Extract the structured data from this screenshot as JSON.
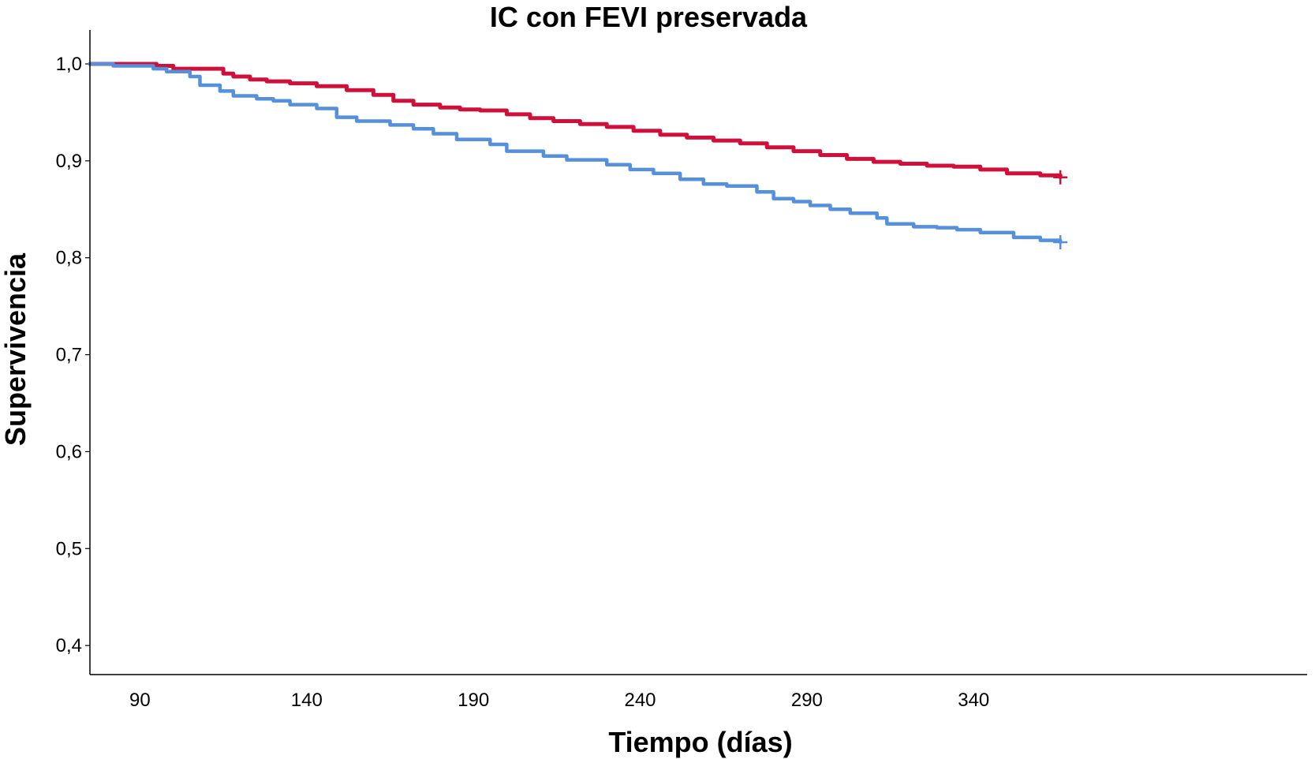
{
  "chart_data": {
    "type": "line",
    "title": "IC con FEVI preservada",
    "xlabel": "Tiempo (días)",
    "ylabel": "Supervivencia",
    "xlim": [
      75,
      440
    ],
    "ylim": [
      0.37,
      1.035
    ],
    "xticks": [
      90,
      140,
      190,
      240,
      290,
      340
    ],
    "xtick_labels": [
      "90",
      "140",
      "190",
      "240",
      "290",
      "340"
    ],
    "yticks": [
      0.4,
      0.5,
      0.6,
      0.7,
      0.8,
      0.9,
      1.0
    ],
    "ytick_labels": [
      "0,4",
      "0,5",
      "0,6",
      "0,7",
      "0,8",
      "0,9",
      "1,0"
    ],
    "grid": false,
    "series": [
      {
        "color": "#d0103a",
        "step": true,
        "censored_end": true,
        "x": [
          75,
          95,
          100,
          115,
          118,
          123,
          128,
          135,
          143,
          152,
          160,
          166,
          172,
          180,
          186,
          192,
          200,
          207,
          214,
          222,
          230,
          238,
          246,
          254,
          262,
          270,
          278,
          286,
          294,
          302,
          310,
          318,
          326,
          334,
          342,
          350,
          360,
          366
        ],
        "y": [
          1.0,
          0.998,
          0.995,
          0.99,
          0.987,
          0.984,
          0.982,
          0.98,
          0.977,
          0.973,
          0.968,
          0.962,
          0.958,
          0.955,
          0.953,
          0.952,
          0.948,
          0.944,
          0.941,
          0.938,
          0.935,
          0.931,
          0.927,
          0.924,
          0.921,
          0.918,
          0.914,
          0.91,
          0.906,
          0.902,
          0.899,
          0.897,
          0.895,
          0.894,
          0.891,
          0.887,
          0.885,
          0.883
        ]
      },
      {
        "color": "#5590dc",
        "step": true,
        "censored_end": true,
        "x": [
          75,
          82,
          94,
          98,
          105,
          108,
          114,
          118,
          125,
          130,
          135,
          143,
          149,
          155,
          165,
          172,
          178,
          185,
          195,
          200,
          211,
          218,
          230,
          237,
          244,
          252,
          259,
          266,
          275,
          280,
          286,
          291,
          297,
          303,
          311,
          314,
          322,
          329,
          335,
          342,
          352,
          360,
          366
        ],
        "y": [
          1.0,
          0.998,
          0.995,
          0.992,
          0.987,
          0.978,
          0.972,
          0.967,
          0.964,
          0.962,
          0.958,
          0.954,
          0.945,
          0.941,
          0.937,
          0.933,
          0.928,
          0.922,
          0.917,
          0.91,
          0.905,
          0.901,
          0.896,
          0.891,
          0.887,
          0.881,
          0.876,
          0.874,
          0.868,
          0.861,
          0.858,
          0.854,
          0.85,
          0.846,
          0.841,
          0.835,
          0.832,
          0.831,
          0.829,
          0.826,
          0.821,
          0.818,
          0.816
        ]
      }
    ]
  }
}
